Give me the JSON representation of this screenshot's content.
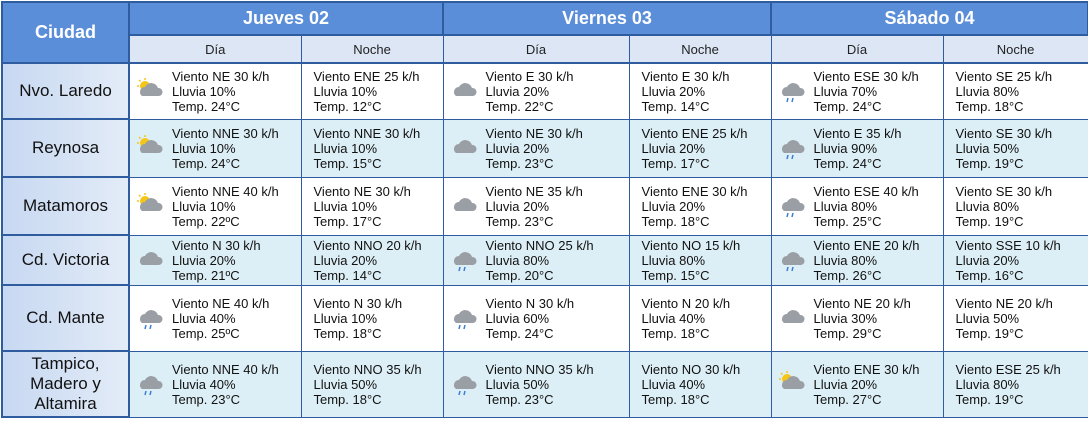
{
  "header": {
    "city": "Ciudad",
    "days": [
      {
        "name": "Jueves 02",
        "parts": [
          "Día",
          "Noche"
        ]
      },
      {
        "name": "Viernes 03",
        "parts": [
          "Día",
          "Noche"
        ]
      },
      {
        "name": "Sábado 04",
        "parts": [
          "Día",
          "Noche"
        ]
      }
    ]
  },
  "rows": [
    {
      "city": "Nvo. Laredo",
      "cells": [
        {
          "viento": "Viento NE 30 k/h",
          "lluvia": "Lluvia 10%",
          "temp": "Temp. 24°C"
        },
        {
          "viento": "Viento ENE 25 k/h",
          "lluvia": "Lluvia 10%",
          "temp": "Temp. 12°C"
        },
        {
          "viento": "Viento E 30 k/h",
          "lluvia": "Lluvia 20%",
          "temp": "Temp. 22°C"
        },
        {
          "viento": "Viento E 30 k/h",
          "lluvia": "Lluvia 20%",
          "temp": "Temp. 14°C"
        },
        {
          "viento": "Viento ESE 30 k/h",
          "lluvia": "Lluvia 70%",
          "temp": "Temp. 24°C"
        },
        {
          "viento": "Viento SE 25 k/h",
          "lluvia": "Lluvia 80%",
          "temp": "Temp. 18°C"
        }
      ]
    },
    {
      "city": "Reynosa",
      "cells": [
        {
          "viento": "Viento NNE 30 k/h",
          "lluvia": "Lluvia 10%",
          "temp": "Temp. 24°C"
        },
        {
          "viento": "Viento NNE 30 k/h",
          "lluvia": "Lluvia 10%",
          "temp": "Temp. 15°C"
        },
        {
          "viento": "Viento NE 30 k/h",
          "lluvia": "Lluvia 20%",
          "temp": "Temp. 23°C"
        },
        {
          "viento": "Viento ENE 25 k/h",
          "lluvia": "Lluvia 20%",
          "temp": "Temp. 17°C"
        },
        {
          "viento": "Viento E 35 k/h",
          "lluvia": "Lluvia 90%",
          "temp": "Temp. 24°C"
        },
        {
          "viento": "Viento SE 30 k/h",
          "lluvia": "Lluvia 50%",
          "temp": "Temp. 19°C"
        }
      ]
    },
    {
      "city": "Matamoros",
      "cells": [
        {
          "viento": "Viento NNE 40 k/h",
          "lluvia": "Lluvia 10%",
          "temp": "Temp. 22ºC"
        },
        {
          "viento": "Viento NE 30 k/h",
          "lluvia": "Lluvia 10%",
          "temp": "Temp. 17°C"
        },
        {
          "viento": "Viento NE 35 k/h",
          "lluvia": "Lluvia 20%",
          "temp": "Temp. 23°C"
        },
        {
          "viento": "Viento ENE 30 k/h",
          "lluvia": "Lluvia 20%",
          "temp": "Temp. 18°C"
        },
        {
          "viento": "Viento ESE 40 k/h",
          "lluvia": "Lluvia 80%",
          "temp": "Temp. 25°C"
        },
        {
          "viento": "Viento SE 30 k/h",
          "lluvia": "Lluvia 80%",
          "temp": "Temp. 19°C"
        }
      ]
    },
    {
      "city": "Cd. Victoria",
      "cells": [
        {
          "viento": "Viento N 30 k/h",
          "lluvia": "Lluvia 20%",
          "temp": "Temp. 21ºC"
        },
        {
          "viento": "Viento NNO 20 k/h",
          "lluvia": "Lluvia 20%",
          "temp": "Temp. 14°C"
        },
        {
          "viento": "Viento NNO 25 k/h",
          "lluvia": "Lluvia 80%",
          "temp": "Temp. 20°C"
        },
        {
          "viento": "Viento NO 15 k/h",
          "lluvia": "Lluvia 80%",
          "temp": "Temp. 15°C"
        },
        {
          "viento": "Viento ENE 20 k/h",
          "lluvia": "Lluvia 80%",
          "temp": "Temp. 26°C"
        },
        {
          "viento": "Viento SSE 10 k/h",
          "lluvia": "Lluvia 20%",
          "temp": "Temp. 16°C"
        }
      ]
    },
    {
      "city": "Cd. Mante",
      "cells": [
        {
          "viento": "Viento NE 40 k/h",
          "lluvia": "Lluvia 40%",
          "temp": "Temp. 25ºC"
        },
        {
          "viento": "Viento N 30 k/h",
          "lluvia": "Lluvia 10%",
          "temp": "Temp. 18°C"
        },
        {
          "viento": "Viento N 30 k/h",
          "lluvia": "Lluvia 60%",
          "temp": "Temp. 24°C"
        },
        {
          "viento": "Viento N 20 k/h",
          "lluvia": "Lluvia 40%",
          "temp": "Temp. 18°C"
        },
        {
          "viento": "Viento NE 20 k/h",
          "lluvia": "Lluvia 30%",
          "temp": "Temp. 29°C"
        },
        {
          "viento": "Viento NE 20 k/h",
          "lluvia": "Lluvia 50%",
          "temp": "Temp. 19°C"
        }
      ]
    },
    {
      "city": "Tampico, Madero y Altamira",
      "cells": [
        {
          "viento": "Viento NNE 40 k/h",
          "lluvia": "Lluvia 40%",
          "temp": "Temp. 23°C"
        },
        {
          "viento": "Viento NNO 35 k/h",
          "lluvia": "Lluvia 50%",
          "temp": "Temp. 18°C"
        },
        {
          "viento": "Viento NNO 35 k/h",
          "lluvia": "Lluvia 50%",
          "temp": "Temp. 23°C"
        },
        {
          "viento": "Viento NO 30 k/h",
          "lluvia": "Lluvia 40%",
          "temp": "Temp. 18°C"
        },
        {
          "viento": "Viento ENE 30 k/h",
          "lluvia": "Lluvia 20%",
          "temp": "Temp. 27°C"
        },
        {
          "viento": "Viento ESE 25 k/h",
          "lluvia": "Lluvia 80%",
          "temp": "Temp. 19°C"
        }
      ]
    }
  ]
}
